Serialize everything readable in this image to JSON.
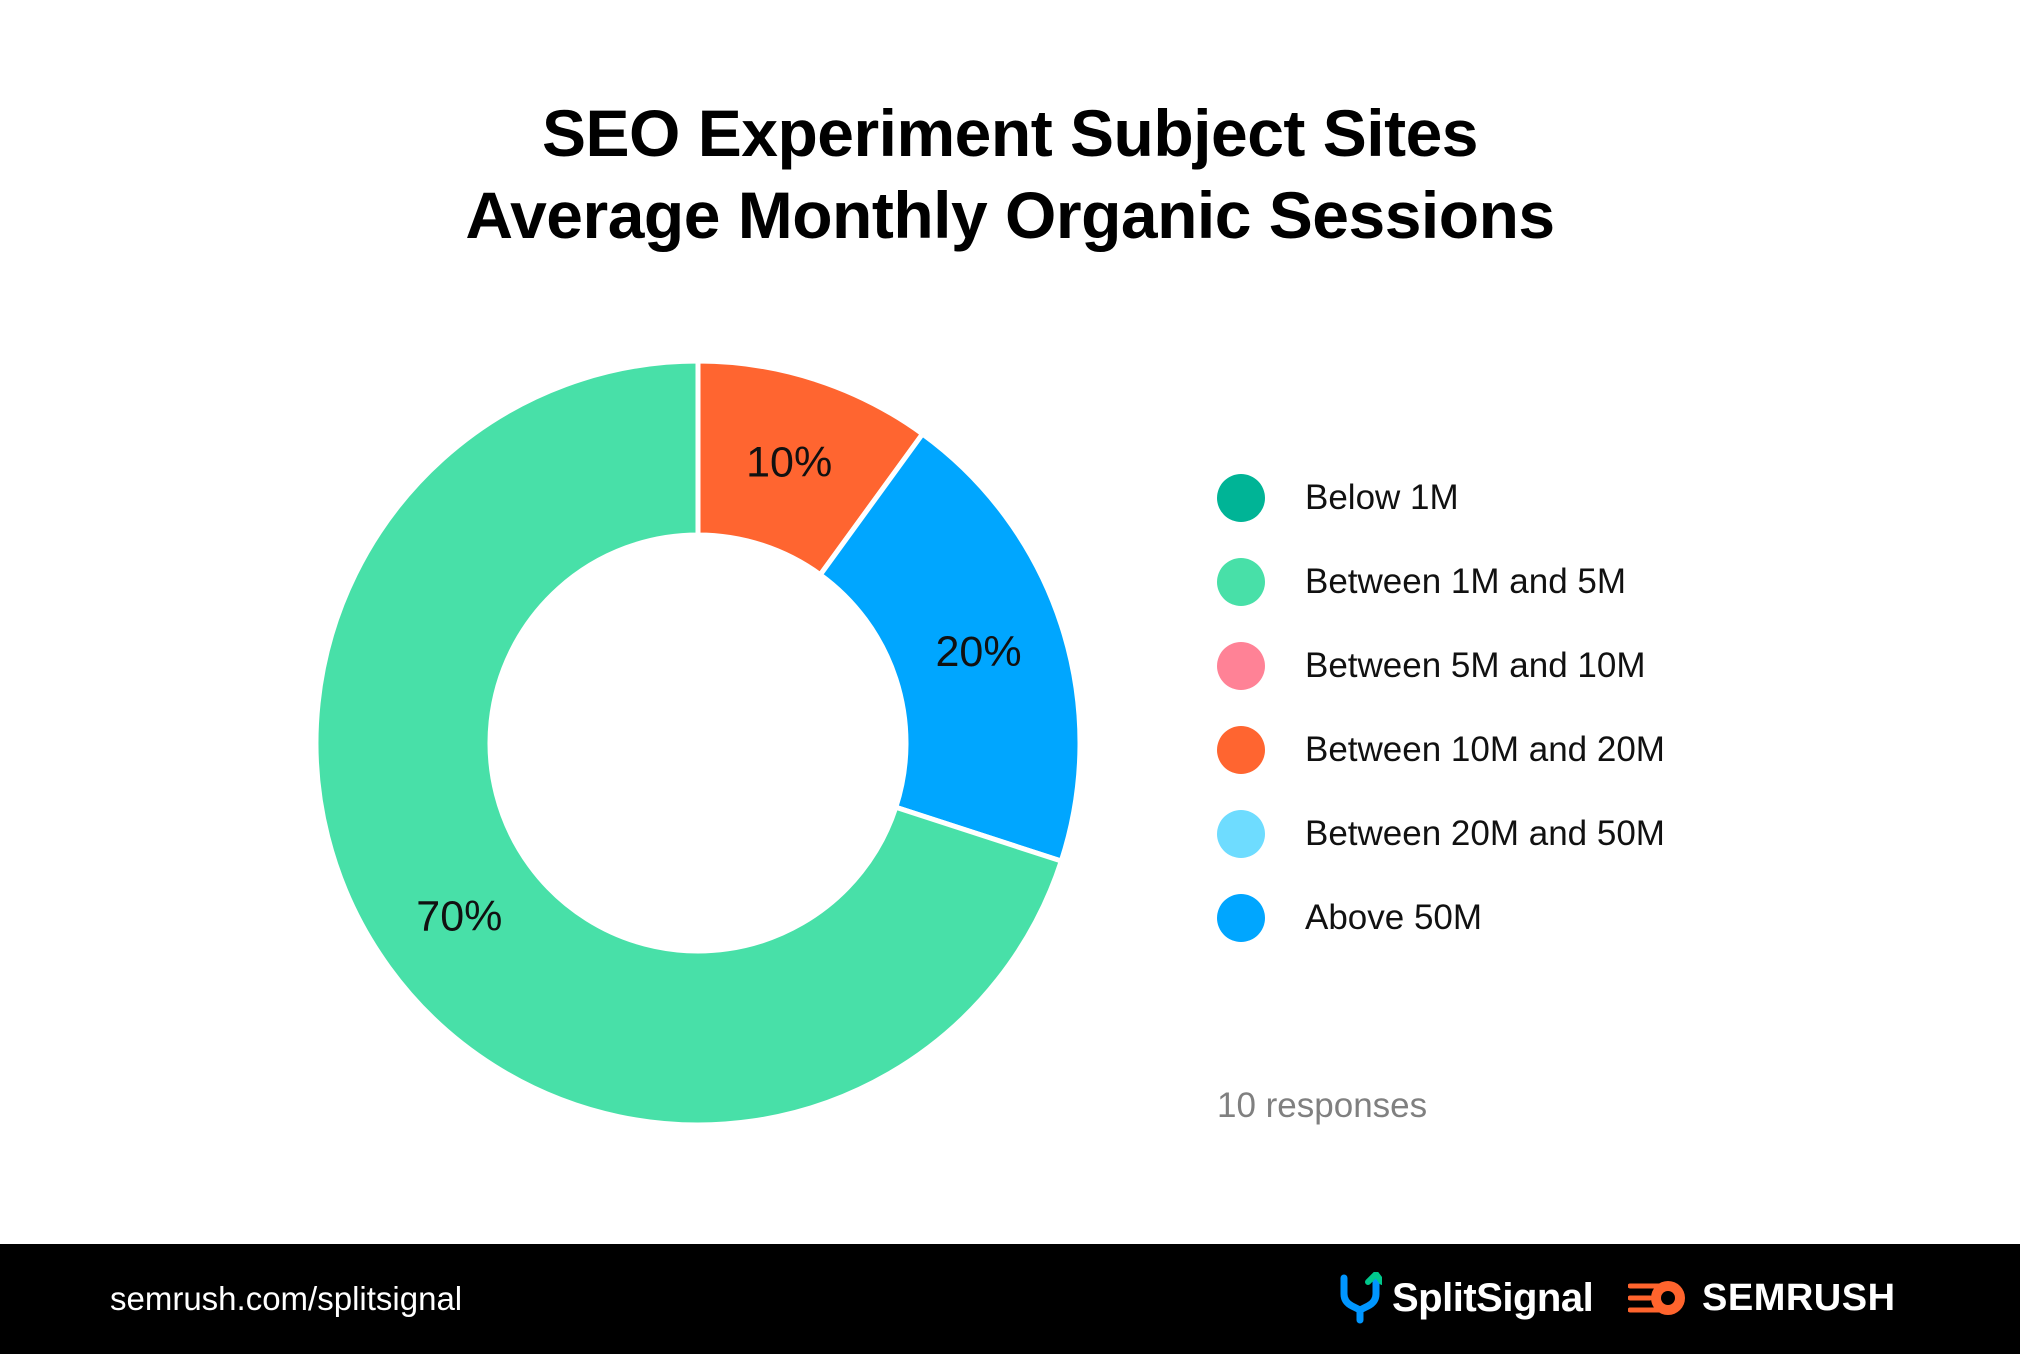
{
  "title": {
    "line1": "SEO Experiment Subject Sites",
    "line2": "Average Monthly Organic Sessions"
  },
  "chart_data": {
    "type": "pie",
    "style": "donut",
    "title": "SEO Experiment Subject Sites Average Monthly Organic Sessions",
    "categories": [
      "Below 1M",
      "Between 1M and 5M",
      "Between 5M and 10M",
      "Between 10M and 20M",
      "Between 20M and 50M",
      "Above 50M"
    ],
    "values": [
      0,
      70,
      0,
      10,
      0,
      20
    ],
    "value_unit": "%",
    "colors": [
      "#00b496",
      "#48e0a8",
      "#ff8296",
      "#ff6530",
      "#6edcff",
      "#00a6ff"
    ],
    "slice_labels": [
      {
        "category": "Between 10M and 20M",
        "text": "10%"
      },
      {
        "category": "Above 50M",
        "text": "20%"
      },
      {
        "category": "Between 1M and 5M",
        "text": "70%"
      }
    ],
    "draw_order": [
      "Between 10M and 20M",
      "Above 50M",
      "Between 1M and 5M"
    ],
    "legend_position": "right",
    "note": "10 responses"
  },
  "legend": {
    "items": [
      {
        "label": "Below 1M",
        "color": "#00b496"
      },
      {
        "label": "Between 1M and 5M",
        "color": "#48e0a8"
      },
      {
        "label": "Between 5M and 10M",
        "color": "#ff8296"
      },
      {
        "label": "Between 10M and 20M",
        "color": "#ff6530"
      },
      {
        "label": "Between 20M and 50M",
        "color": "#6edcff"
      },
      {
        "label": "Above 50M",
        "color": "#00a6ff"
      }
    ]
  },
  "footer": {
    "url": "semrush.com/splitsignal",
    "brand1": "SplitSignal",
    "brand1_icon": "splitsignal-logo-icon",
    "brand2": "SEMRUSH",
    "brand2_icon": "semrush-logo-icon",
    "background": "#000000",
    "accent_orange": "#ff642d",
    "accent_blue": "#0096ff",
    "accent_green": "#00c88c"
  }
}
